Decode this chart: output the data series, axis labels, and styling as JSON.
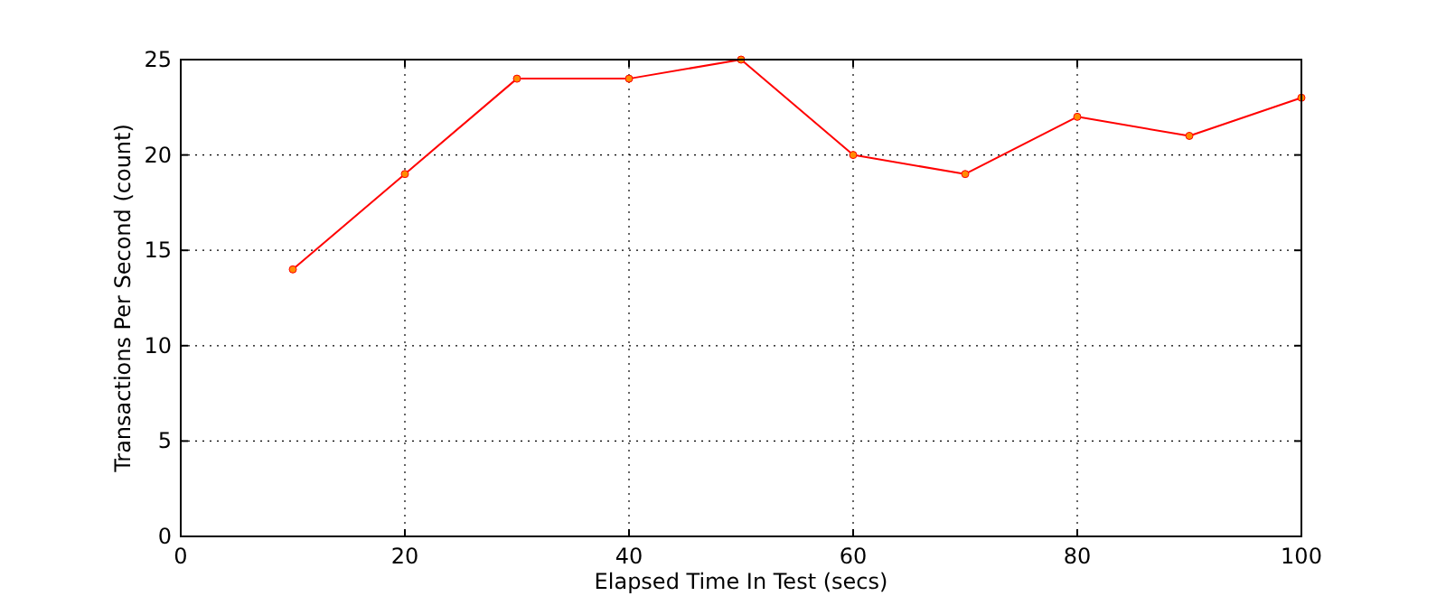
{
  "chart_data": {
    "type": "line",
    "xlabel": "Elapsed Time In Test (secs)",
    "ylabel": "Transactions Per Second (count)",
    "x": [
      10,
      20,
      30,
      40,
      50,
      60,
      70,
      80,
      90,
      100
    ],
    "series": [
      {
        "color": "#ff0000",
        "values": [
          14,
          19,
          24,
          24,
          25,
          20,
          19,
          22,
          21,
          23
        ]
      }
    ],
    "xlim": [
      0,
      100
    ],
    "ylim": [
      0,
      25
    ],
    "xticks": [
      0,
      20,
      40,
      60,
      80,
      100
    ],
    "yticks": [
      0,
      5,
      10,
      15,
      20,
      25
    ],
    "grid": true,
    "marker": "circle",
    "line_style": "solid"
  }
}
